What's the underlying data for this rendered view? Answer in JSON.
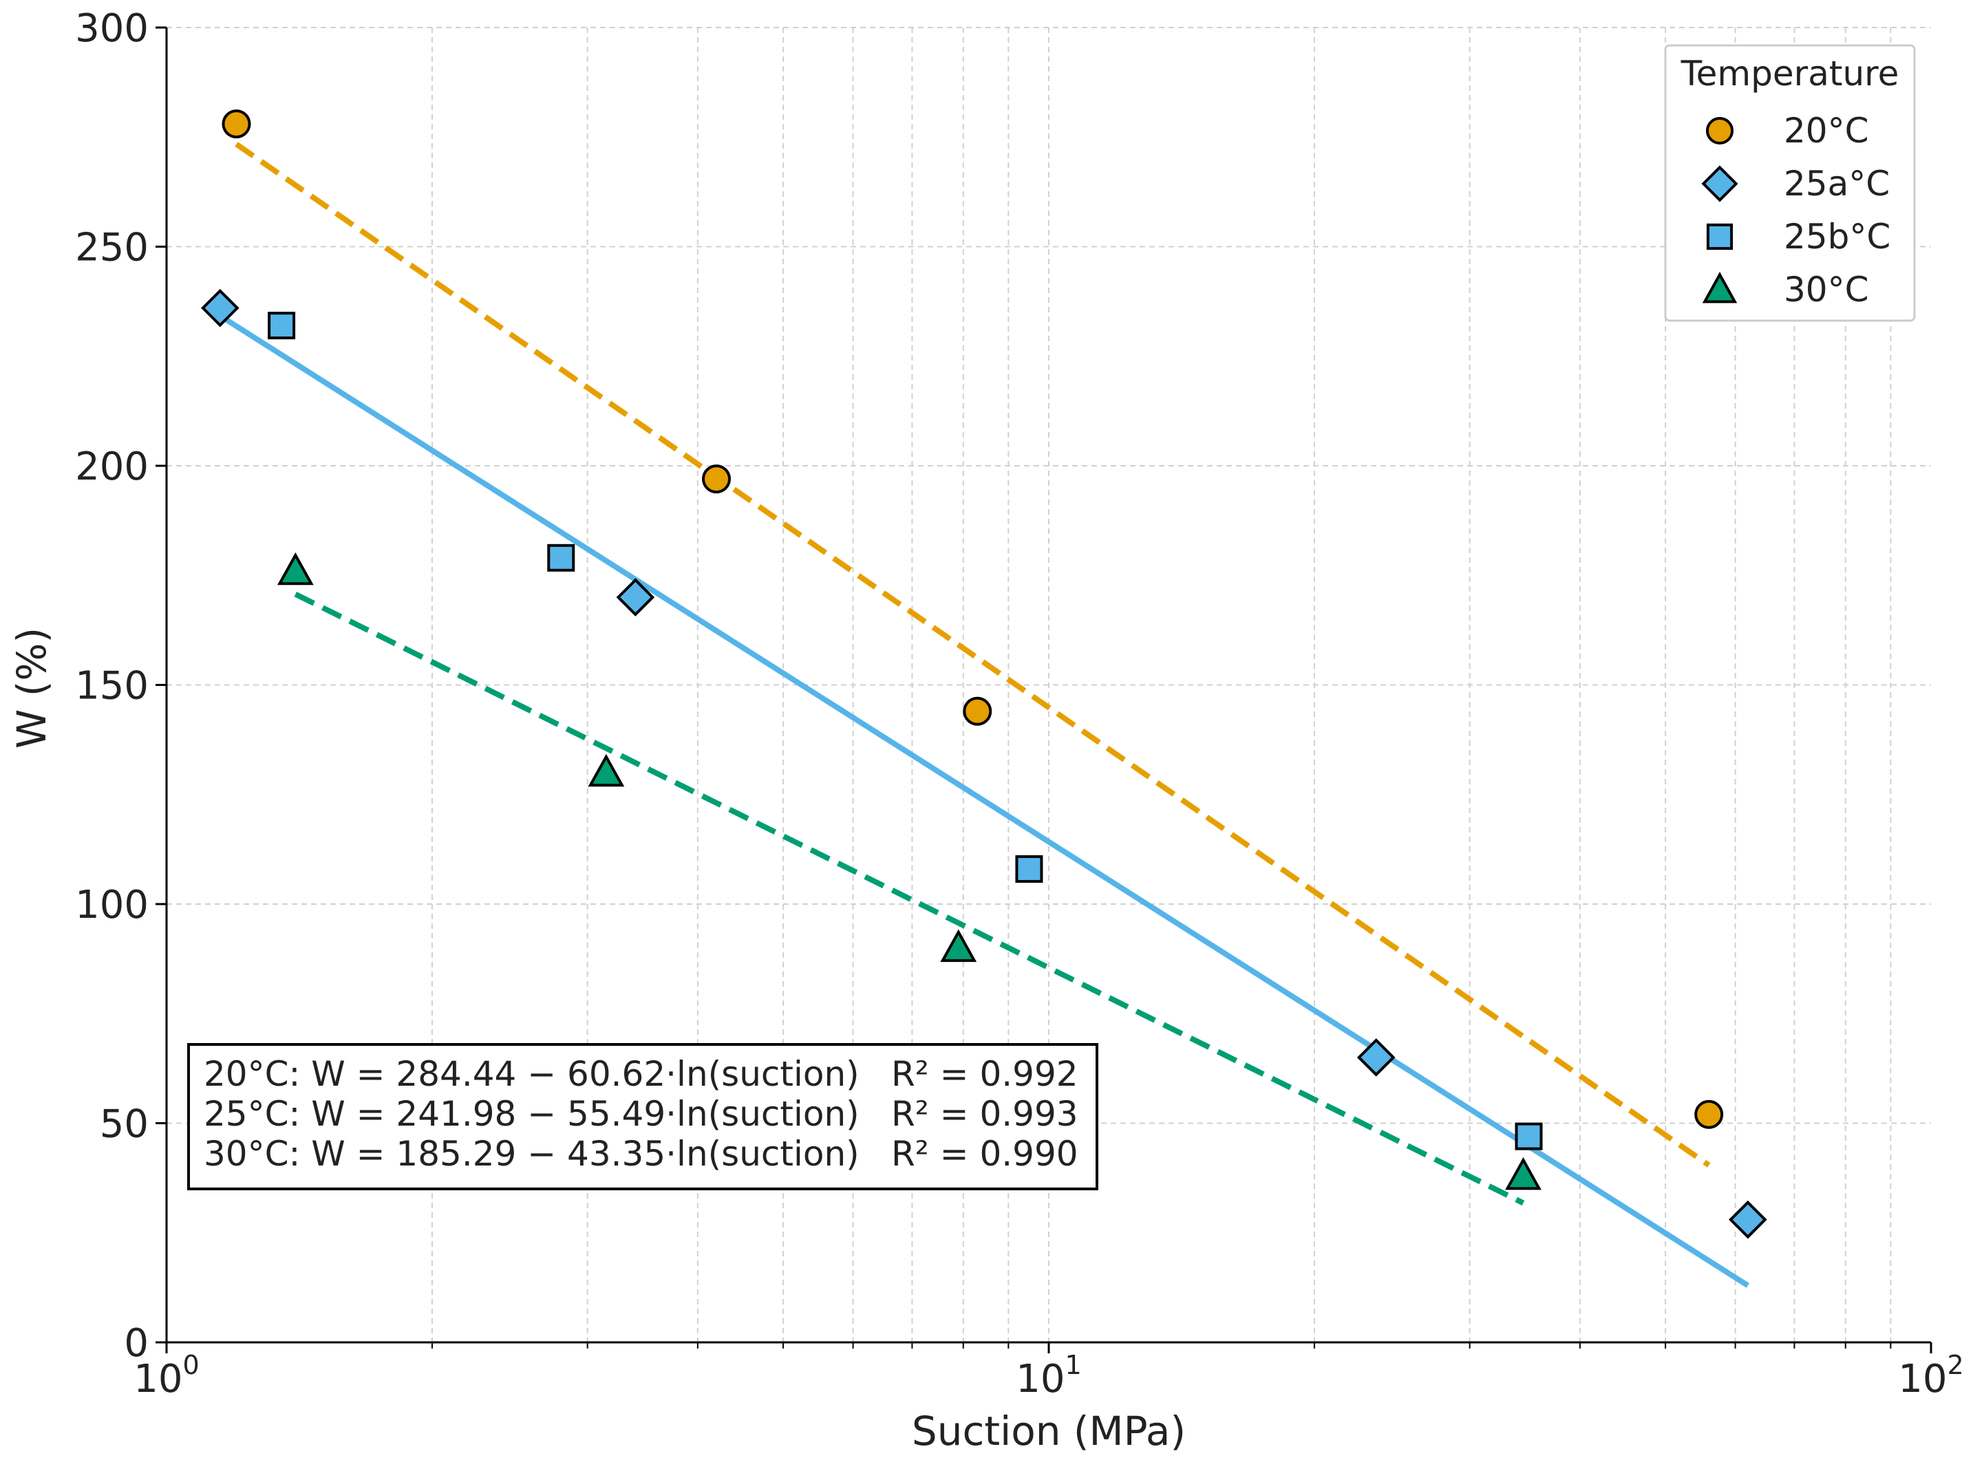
{
  "chart_data": {
    "type": "scatter",
    "xscale": "log",
    "xlim": [
      1,
      100
    ],
    "ylim": [
      0,
      300
    ],
    "xlabel": "Suction (MPa)",
    "ylabel": "W (%)",
    "x_ticks": [
      {
        "value": 1,
        "base": "10",
        "exp": "0"
      },
      {
        "value": 10,
        "base": "10",
        "exp": "1"
      },
      {
        "value": 100,
        "base": "10",
        "exp": "2"
      }
    ],
    "y_ticks": [
      0,
      50,
      100,
      150,
      200,
      250,
      300
    ],
    "grid": true,
    "legend": {
      "title": "Temperature",
      "position": "top-right"
    },
    "series": [
      {
        "name": "20°C",
        "marker": "circle",
        "color": "#E69F00",
        "line_style": "dashed",
        "points": [
          {
            "x": 1.2,
            "y": 278
          },
          {
            "x": 4.2,
            "y": 197
          },
          {
            "x": 8.3,
            "y": 144
          },
          {
            "x": 56,
            "y": 52
          }
        ],
        "fit": {
          "intercept": 284.44,
          "slope": 60.62,
          "xmin": 1.2,
          "xmax": 56
        }
      },
      {
        "name": "25a°C",
        "marker": "diamond",
        "color": "#56B4E9",
        "line_style": "solid",
        "points": [
          {
            "x": 1.15,
            "y": 236
          },
          {
            "x": 3.4,
            "y": 170
          },
          {
            "x": 23.5,
            "y": 65
          },
          {
            "x": 62,
            "y": 28
          }
        ],
        "fit": {
          "intercept": 241.98,
          "slope": 55.49,
          "xmin": 1.15,
          "xmax": 62
        }
      },
      {
        "name": "25b°C",
        "marker": "square",
        "color": "#56B4E9",
        "line_style": "none",
        "points": [
          {
            "x": 1.35,
            "y": 232
          },
          {
            "x": 2.8,
            "y": 179
          },
          {
            "x": 9.5,
            "y": 108
          },
          {
            "x": 35,
            "y": 47
          }
        ]
      },
      {
        "name": "30°C",
        "marker": "triangle",
        "color": "#009E73",
        "line_style": "dashed",
        "points": [
          {
            "x": 1.4,
            "y": 176
          },
          {
            "x": 3.15,
            "y": 130
          },
          {
            "x": 7.9,
            "y": 90
          },
          {
            "x": 34.5,
            "y": 38
          }
        ],
        "fit": {
          "intercept": 185.29,
          "slope": 43.35,
          "xmin": 1.4,
          "xmax": 34.5
        }
      }
    ],
    "annotations": [
      {
        "label": "20°C: W = 284.44 − 60.62·ln(suction)",
        "r2": "R² = 0.992"
      },
      {
        "label": "25°C: W = 241.98 − 55.49·ln(suction)",
        "r2": "R² = 0.993"
      },
      {
        "label": "30°C: W = 185.29 − 43.35·ln(suction)",
        "r2": "R² = 0.990"
      }
    ]
  }
}
